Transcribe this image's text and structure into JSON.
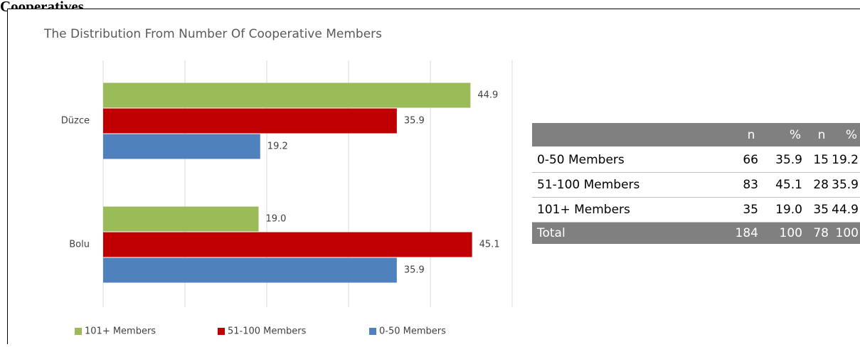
{
  "heading": "Cooperatives.",
  "chart_data": {
    "type": "bar",
    "orientation": "horizontal",
    "title": "The Distribution From Number Of Cooperative Members",
    "categories": [
      "Düzce",
      "Bolu"
    ],
    "series": [
      {
        "name": "101+ Members",
        "color": "#9bbb59",
        "values": [
          44.9,
          19.0
        ],
        "value_labels": [
          "44.9",
          "19.0"
        ]
      },
      {
        "name": "51-100 Members",
        "color": "#c00000",
        "values": [
          35.9,
          45.1
        ],
        "value_labels": [
          "35.9",
          "45.1"
        ]
      },
      {
        "name": "0-50 Members",
        "color": "#4f81bd",
        "values": [
          19.2,
          35.9
        ],
        "value_labels": [
          "19.2",
          "35.9"
        ]
      }
    ],
    "xlim": [
      0,
      50
    ],
    "xticks": [
      0,
      10,
      20,
      30,
      40,
      50
    ],
    "grid": true,
    "legend": "bottom"
  },
  "table": {
    "headers": [
      "n",
      "%",
      "n",
      "%"
    ],
    "rows": [
      [
        "0-50 Members",
        "66",
        "35.9",
        "15",
        "19.2"
      ],
      [
        "51-100 Members",
        "83",
        "45.1",
        "28",
        "35.9"
      ],
      [
        "101+ Members",
        "35",
        "19.0",
        "35",
        "44.9"
      ]
    ],
    "total": [
      "Total",
      "184",
      "100",
      "78",
      "100"
    ]
  }
}
